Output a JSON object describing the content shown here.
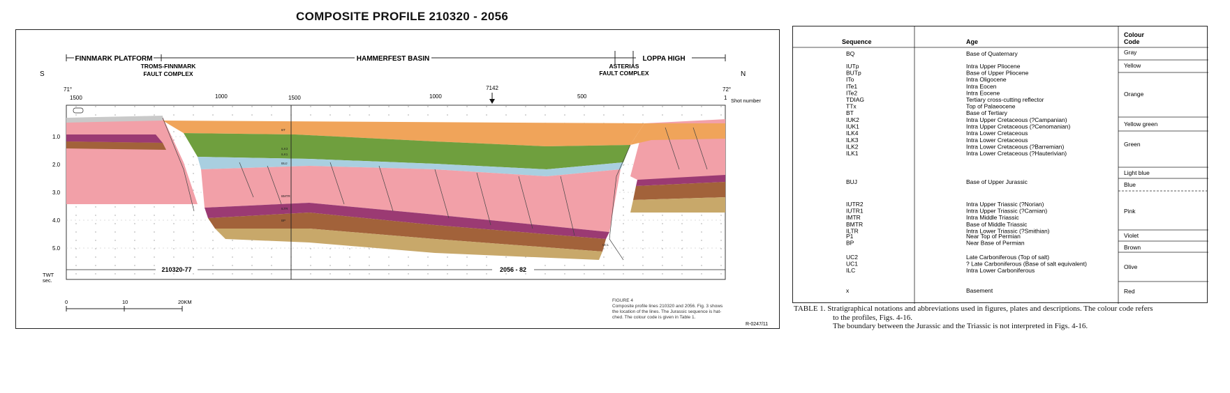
{
  "title": "COMPOSITE PROFILE 210320 - 2056",
  "profile": {
    "regions": {
      "finnmark_platform": "FINNMARK PLATFORM",
      "hammerfest_basin": "HAMMERFEST BASIN",
      "loppa_high": "LOPPA HIGH",
      "troms_finnmark_1": "TROMS-FINNMARK",
      "troms_finnmark_2": "FAULT COMPLEX",
      "asterias_1": "ASTERIAS",
      "asterias_2": "FAULT COMPLEX"
    },
    "direction_left": "S",
    "direction_right": "N",
    "lat_left": "71°",
    "lat_right": "72°",
    "shot_ticks": [
      "1500",
      "1000",
      "1500",
      "1000",
      "500",
      "1"
    ],
    "shot_label": "Shot number",
    "marker": "7142",
    "twt_ticks": [
      "1.0",
      "2.0",
      "3.0",
      "4.0",
      "5.0"
    ],
    "twt_label_1": "TWT",
    "twt_label_2": "sec.",
    "line_left": "210320-77",
    "line_right": "2056 - 82",
    "scale_ticks": [
      "0",
      "10",
      "20KM"
    ],
    "figure_caption": [
      "FIGURE 4",
      "Composite profile lines 210320 and 2056. Fig. 3 shows",
      "the location of the lines. The Jurassic sequence is hat-",
      "ched. The colour code is given in Table 1."
    ],
    "ref": "R-0247/11",
    "horizon_labels": {
      "bt": "BT",
      "lk3": "ILK3",
      "lk1": "ILK1",
      "buj": "BUJ",
      "bmtr": "BMTR",
      "itr": "ILTR",
      "bp": "BP",
      "uc1": "UC1"
    }
  },
  "colors": {
    "orange": "#f0a45a",
    "green": "#6f9f3e",
    "light_blue": "#a9cfe0",
    "blue": "#5b8fc0",
    "pink": "#f2a0a8",
    "violet": "#9b3a73",
    "brown": "#a2623a",
    "olive": "#c8a86a",
    "gray": "#c9c9c9",
    "yellow": "#f2d96a"
  },
  "table": {
    "headers": {
      "sequence": "Sequence",
      "age": "Age",
      "colour_1": "Colour",
      "colour_2": "Code"
    },
    "groups": [
      {
        "rows": [
          {
            "seq": "BQ",
            "age": "Base of Quaternary"
          }
        ],
        "colour": [
          "Gray"
        ]
      },
      {
        "rows": [
          {
            "seq": "IUTp",
            "age": "Intra Upper Pliocene"
          },
          {
            "seq": "BUTp",
            "age": "Base of Upper Pliocene"
          },
          {
            "seq": "ITo",
            "age": "Intra Oligocene"
          },
          {
            "seq": "ITe1",
            "age": "Intra Eocen"
          },
          {
            "seq": "ITe2",
            "age": "Intra Eocene"
          },
          {
            "seq": "TDIAG",
            "age": "Tertiary cross-cutting reflector"
          },
          {
            "seq": "TTx",
            "age": "Top of Palaeocene"
          },
          {
            "seq": "BT",
            "age": "Base of Tertiary"
          }
        ],
        "colour": [
          "Yellow",
          "Orange"
        ]
      },
      {
        "rows": [
          {
            "seq": "IUK2",
            "age": "Intra Upper Cretaceous (?Campanian)"
          },
          {
            "seq": "IUK1",
            "age": "Intra Upper Cretaceous (?Cenomanian)"
          },
          {
            "seq": "ILK4",
            "age": "Intra Lower Cretaceous"
          },
          {
            "seq": "ILK3",
            "age": "Intra Lower Cretaceous"
          },
          {
            "seq": "ILK2",
            "age": "Intra Lower Cretaceous (?Barremian)"
          },
          {
            "seq": "ILK1",
            "age": "Intra Lower Cretaceous (?Hauterivian)"
          }
        ],
        "colour": [
          "Yellow green",
          "Green"
        ]
      },
      {
        "rows": [
          {
            "seq": "BUJ",
            "age": "Base of Upper Jurassic"
          }
        ],
        "colour": [
          "Light blue",
          "Blue"
        ]
      },
      {
        "rows": [
          {
            "seq": "IUTR2",
            "age": "Intra Upper Triassic (?Norian)"
          },
          {
            "seq": "IUTR1",
            "age": "Intra Upper Triassic (?Carnian)"
          },
          {
            "seq": "IMTR",
            "age": "Intra Middle Triassic"
          },
          {
            "seq": "BMTR",
            "age": "Base of Middle Triassic"
          },
          {
            "seq": "ILTR",
            "age": "Intra Lower Triassic (?Smithian)"
          }
        ],
        "colour": [
          "Pink"
        ]
      },
      {
        "rows": [
          {
            "seq": "P1",
            "age": "Near Top of Permian"
          },
          {
            "seq": "BP",
            "age": "Near Base of Permian"
          }
        ],
        "colour": [
          "Violet",
          "Brown"
        ]
      },
      {
        "rows": [
          {
            "seq": "UC2",
            "age": "Late Carboniferous (Top of salt)"
          },
          {
            "seq": "UC1",
            "age": "? Late Carboniferous (Base of salt equivalent)"
          },
          {
            "seq": "ILC",
            "age": "Intra Lower Carboniferous"
          }
        ],
        "colour": [
          "Olive"
        ]
      },
      {
        "rows": [
          {
            "seq": "x",
            "age": "Basement"
          }
        ],
        "colour": [
          "Red"
        ]
      }
    ]
  },
  "caption": {
    "line1": "TABLE 1. Stratigraphical notations and abbreviations used in figures, plates and descriptions. The colour code refers",
    "line2": "to the profiles, Figs. 4-16.",
    "line3": "The boundary between the Jurassic and the Triassic is not interpreted in Figs. 4-16."
  }
}
